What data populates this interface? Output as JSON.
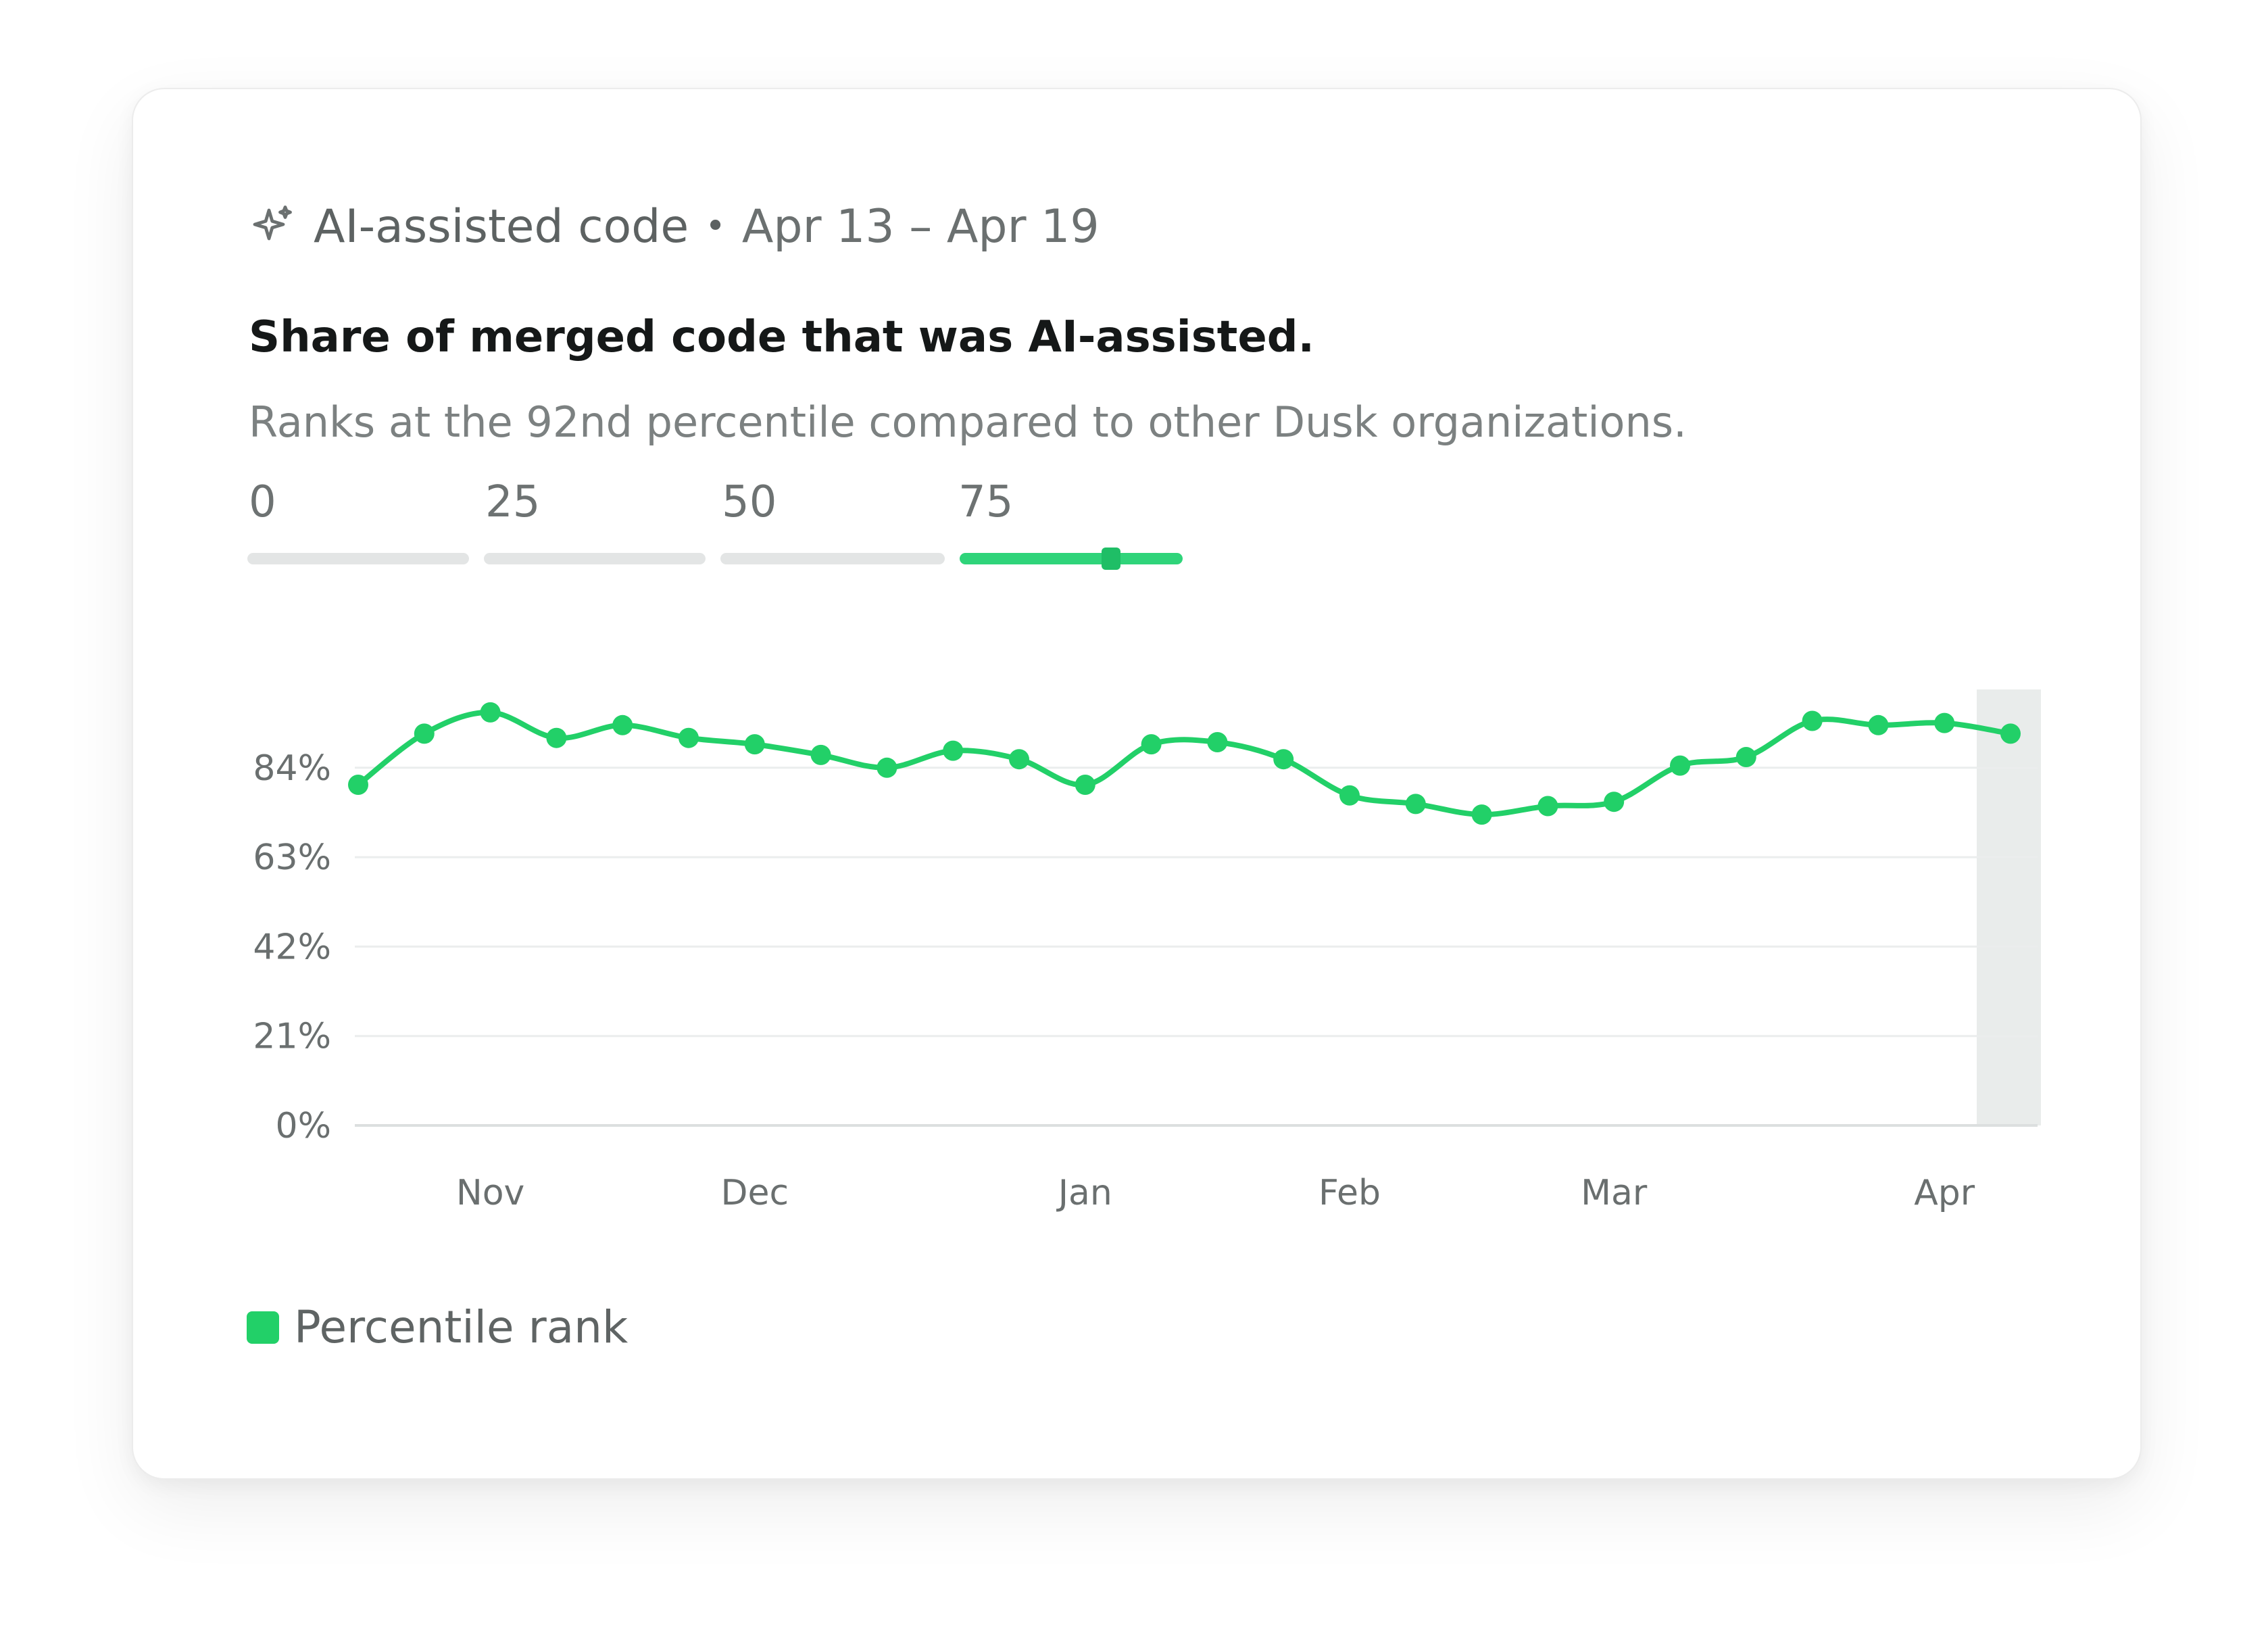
{
  "header": {
    "icon": "sparkle-icon",
    "title": "AI-assisted code",
    "separator": "•",
    "date_range": "Apr 13 – Apr 19"
  },
  "subtitle": "Share of merged code that was AI-assisted.",
  "description": "Ranks at the 92nd percentile compared to other Dusk organizations.",
  "percentile_scale": {
    "labels": [
      "0",
      "25",
      "50",
      "75"
    ],
    "value": 92,
    "accent_color": "#2fd47a"
  },
  "legend": {
    "label": "Percentile rank",
    "color": "#22d068"
  },
  "chart_data": {
    "type": "line",
    "title": "",
    "xlabel": "",
    "ylabel": "",
    "y_tick_labels": [
      "0%",
      "21%",
      "42%",
      "63%",
      "84%"
    ],
    "y_ticks": [
      0,
      21,
      42,
      63,
      84
    ],
    "ylim": [
      0,
      100
    ],
    "x_tick_labels": [
      "Nov",
      "Dec",
      "Jan",
      "Feb",
      "Mar",
      "Apr"
    ],
    "x_tick_positions": [
      2,
      6,
      11,
      15,
      19,
      24
    ],
    "grid": true,
    "legend_position": "bottom-left",
    "series": [
      {
        "name": "Percentile rank",
        "color": "#22d068",
        "values": [
          80,
          92,
          97,
          91,
          94,
          91,
          89.5,
          87,
          84,
          88,
          86,
          80,
          89.5,
          90,
          86,
          77.5,
          75.5,
          73,
          75,
          76,
          84.5,
          86.5,
          95,
          94,
          94.5,
          92
        ]
      }
    ],
    "highlighted_index": 25
  }
}
